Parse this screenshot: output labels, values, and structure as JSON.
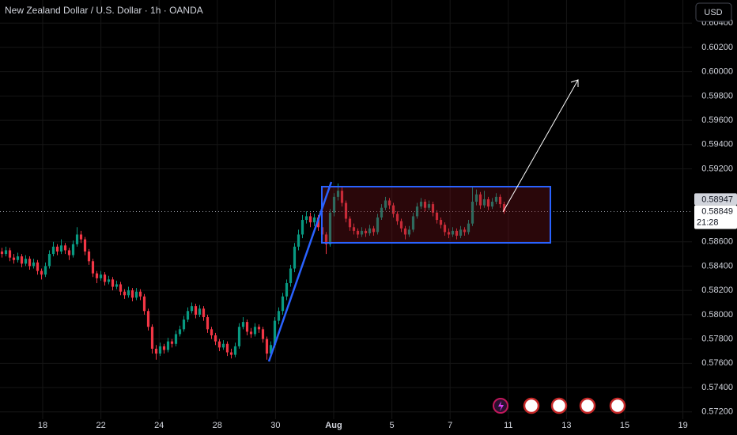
{
  "chart_data": {
    "type": "candlestick",
    "title": "New Zealand Dollar / U.S. Dollar · 1h · OANDA",
    "currency": "USD",
    "up_color": "#089981",
    "down_color": "#f23645",
    "ylim": [
      0.5714,
      0.6059
    ],
    "yticks": [
      {
        "value": 0.604,
        "label": "0.60400"
      },
      {
        "value": 0.602,
        "label": "0.60200"
      },
      {
        "value": 0.6,
        "label": "0.60000"
      },
      {
        "value": 0.598,
        "label": "0.59800"
      },
      {
        "value": 0.596,
        "label": "0.59600"
      },
      {
        "value": 0.594,
        "label": "0.59400"
      },
      {
        "value": 0.592,
        "label": "0.59200"
      },
      {
        "value": 0.586,
        "label": "0.58600"
      },
      {
        "value": 0.584,
        "label": "0.58400"
      },
      {
        "value": 0.582,
        "label": "0.58200"
      },
      {
        "value": 0.58,
        "label": "0.58000"
      },
      {
        "value": 0.578,
        "label": "0.57800"
      },
      {
        "value": 0.576,
        "label": "0.57600"
      },
      {
        "value": 0.574,
        "label": "0.57400"
      },
      {
        "value": 0.572,
        "label": "0.57200"
      }
    ],
    "x_labels": [
      "18",
      "22",
      "24",
      "28",
      "30",
      "Aug",
      "5",
      "7",
      "11",
      "13",
      "15",
      "19"
    ],
    "price_marker": 0.58947,
    "last_price": 0.58849,
    "countdown": "21:28",
    "candles": [
      [
        0.5852,
        0.5855,
        0.5847,
        0.585
      ],
      [
        0.585,
        0.5856,
        0.5848,
        0.5853
      ],
      [
        0.5853,
        0.5855,
        0.5844,
        0.5847
      ],
      [
        0.5847,
        0.585,
        0.5842,
        0.5845
      ],
      [
        0.5845,
        0.5851,
        0.5843,
        0.5848
      ],
      [
        0.5848,
        0.585,
        0.5839,
        0.5842
      ],
      [
        0.5842,
        0.5849,
        0.584,
        0.5846
      ],
      [
        0.5846,
        0.5848,
        0.5837,
        0.584
      ],
      [
        0.584,
        0.5846,
        0.5838,
        0.5843
      ],
      [
        0.5843,
        0.5845,
        0.5833,
        0.5836
      ],
      [
        0.5836,
        0.5838,
        0.5829,
        0.5833
      ],
      [
        0.5833,
        0.5843,
        0.5831,
        0.584
      ],
      [
        0.584,
        0.5853,
        0.5838,
        0.585
      ],
      [
        0.585,
        0.586,
        0.5848,
        0.5856
      ],
      [
        0.5856,
        0.5858,
        0.5849,
        0.5852
      ],
      [
        0.5852,
        0.5862,
        0.585,
        0.5857
      ],
      [
        0.5857,
        0.5859,
        0.585,
        0.5853
      ],
      [
        0.5853,
        0.5855,
        0.5845,
        0.5849
      ],
      [
        0.5849,
        0.5861,
        0.5847,
        0.5858
      ],
      [
        0.5858,
        0.5872,
        0.5856,
        0.5866
      ],
      [
        0.5866,
        0.5869,
        0.5859,
        0.5862
      ],
      [
        0.5862,
        0.5864,
        0.5849,
        0.5852
      ],
      [
        0.5852,
        0.5854,
        0.5841,
        0.5844
      ],
      [
        0.5844,
        0.5846,
        0.5831,
        0.5834
      ],
      [
        0.5834,
        0.5836,
        0.5826,
        0.583
      ],
      [
        0.583,
        0.5836,
        0.5828,
        0.5833
      ],
      [
        0.5833,
        0.5835,
        0.5824,
        0.5827
      ],
      [
        0.5827,
        0.5832,
        0.5825,
        0.5829
      ],
      [
        0.5829,
        0.5831,
        0.582,
        0.5823
      ],
      [
        0.5823,
        0.5828,
        0.5821,
        0.5825
      ],
      [
        0.5825,
        0.5827,
        0.5816,
        0.5819
      ],
      [
        0.5819,
        0.5821,
        0.5813,
        0.5816
      ],
      [
        0.5816,
        0.5823,
        0.5814,
        0.582
      ],
      [
        0.582,
        0.5822,
        0.5811,
        0.5814
      ],
      [
        0.5814,
        0.5822,
        0.5812,
        0.5819
      ],
      [
        0.5819,
        0.5821,
        0.5812,
        0.5815
      ],
      [
        0.5815,
        0.5817,
        0.58,
        0.5803
      ],
      [
        0.5803,
        0.5805,
        0.5787,
        0.579
      ],
      [
        0.579,
        0.5792,
        0.5768,
        0.5772
      ],
      [
        0.5772,
        0.5775,
        0.5763,
        0.5768
      ],
      [
        0.5768,
        0.5777,
        0.5766,
        0.5774
      ],
      [
        0.5774,
        0.5776,
        0.5768,
        0.5771
      ],
      [
        0.5771,
        0.5781,
        0.5769,
        0.5778
      ],
      [
        0.5778,
        0.578,
        0.5773,
        0.5776
      ],
      [
        0.5776,
        0.5787,
        0.5774,
        0.5784
      ],
      [
        0.5784,
        0.5791,
        0.5782,
        0.5788
      ],
      [
        0.5788,
        0.5799,
        0.5786,
        0.5796
      ],
      [
        0.5796,
        0.5806,
        0.5794,
        0.5803
      ],
      [
        0.5803,
        0.581,
        0.5801,
        0.5807
      ],
      [
        0.5807,
        0.5809,
        0.5797,
        0.58
      ],
      [
        0.58,
        0.5808,
        0.5798,
        0.5805
      ],
      [
        0.5805,
        0.5807,
        0.5795,
        0.5798
      ],
      [
        0.5798,
        0.58,
        0.5785,
        0.5788
      ],
      [
        0.5788,
        0.579,
        0.578,
        0.5783
      ],
      [
        0.5783,
        0.5785,
        0.5775,
        0.5778
      ],
      [
        0.5778,
        0.578,
        0.577,
        0.5773
      ],
      [
        0.5773,
        0.5779,
        0.5771,
        0.5776
      ],
      [
        0.5776,
        0.5778,
        0.5766,
        0.5769
      ],
      [
        0.5769,
        0.5772,
        0.5764,
        0.5767
      ],
      [
        0.5767,
        0.5777,
        0.5765,
        0.5774
      ],
      [
        0.5774,
        0.5793,
        0.5772,
        0.579
      ],
      [
        0.579,
        0.5798,
        0.5788,
        0.5794
      ],
      [
        0.5794,
        0.5796,
        0.5783,
        0.5786
      ],
      [
        0.5786,
        0.5789,
        0.5781,
        0.5784
      ],
      [
        0.5784,
        0.5793,
        0.5782,
        0.579
      ],
      [
        0.579,
        0.5792,
        0.5785,
        0.5788
      ],
      [
        0.5788,
        0.579,
        0.5777,
        0.578
      ],
      [
        0.578,
        0.5782,
        0.5763,
        0.5768
      ],
      [
        0.5768,
        0.5778,
        0.5765,
        0.5775
      ],
      [
        0.5775,
        0.5798,
        0.5773,
        0.5795
      ],
      [
        0.5795,
        0.5806,
        0.5792,
        0.5803
      ],
      [
        0.5803,
        0.5818,
        0.58,
        0.5815
      ],
      [
        0.5815,
        0.5829,
        0.5812,
        0.5826
      ],
      [
        0.5826,
        0.5841,
        0.5823,
        0.5838
      ],
      [
        0.5838,
        0.5859,
        0.5835,
        0.5856
      ],
      [
        0.5856,
        0.587,
        0.5853,
        0.5866
      ],
      [
        0.5866,
        0.5882,
        0.5863,
        0.5878
      ],
      [
        0.5878,
        0.5885,
        0.5875,
        0.5881
      ],
      [
        0.5881,
        0.5884,
        0.5872,
        0.5876
      ],
      [
        0.5876,
        0.5883,
        0.5873,
        0.588
      ],
      [
        0.588,
        0.5882,
        0.5869,
        0.5872
      ],
      [
        0.5872,
        0.5875,
        0.5862,
        0.5866
      ],
      [
        0.5866,
        0.5868,
        0.585,
        0.5858
      ],
      [
        0.5858,
        0.5887,
        0.5856,
        0.5884
      ],
      [
        0.5884,
        0.59,
        0.5881,
        0.5897
      ],
      [
        0.5897,
        0.5908,
        0.5894,
        0.5902
      ],
      [
        0.5902,
        0.5905,
        0.5889,
        0.5892
      ],
      [
        0.5892,
        0.5894,
        0.5876,
        0.5879
      ],
      [
        0.5879,
        0.5881,
        0.5869,
        0.5872
      ],
      [
        0.5872,
        0.5875,
        0.5866,
        0.5869
      ],
      [
        0.5869,
        0.5871,
        0.5863,
        0.5866
      ],
      [
        0.5866,
        0.5872,
        0.5864,
        0.5869
      ],
      [
        0.5869,
        0.5871,
        0.5864,
        0.5867
      ],
      [
        0.5867,
        0.5874,
        0.5865,
        0.5871
      ],
      [
        0.5871,
        0.5873,
        0.5865,
        0.5868
      ],
      [
        0.5868,
        0.5883,
        0.5866,
        0.588
      ],
      [
        0.588,
        0.5891,
        0.5878,
        0.5888
      ],
      [
        0.5888,
        0.5897,
        0.5886,
        0.5894
      ],
      [
        0.5894,
        0.5896,
        0.5887,
        0.589
      ],
      [
        0.589,
        0.5892,
        0.588,
        0.5883
      ],
      [
        0.5883,
        0.5885,
        0.5874,
        0.5877
      ],
      [
        0.5877,
        0.5879,
        0.5868,
        0.5871
      ],
      [
        0.5871,
        0.5873,
        0.5862,
        0.5866
      ],
      [
        0.5866,
        0.5873,
        0.5864,
        0.587
      ],
      [
        0.587,
        0.5884,
        0.5868,
        0.5881
      ],
      [
        0.5881,
        0.5892,
        0.5879,
        0.5889
      ],
      [
        0.5889,
        0.5896,
        0.5887,
        0.5893
      ],
      [
        0.5893,
        0.5895,
        0.5885,
        0.5888
      ],
      [
        0.5888,
        0.5894,
        0.5886,
        0.5891
      ],
      [
        0.5891,
        0.5893,
        0.5881,
        0.5884
      ],
      [
        0.5884,
        0.5886,
        0.5875,
        0.5878
      ],
      [
        0.5878,
        0.588,
        0.5871,
        0.5874
      ],
      [
        0.5874,
        0.5876,
        0.5865,
        0.5868
      ],
      [
        0.5868,
        0.5871,
        0.5863,
        0.5866
      ],
      [
        0.5866,
        0.5872,
        0.5864,
        0.5869
      ],
      [
        0.5869,
        0.5871,
        0.5862,
        0.5865
      ],
      [
        0.5865,
        0.5873,
        0.5863,
        0.587
      ],
      [
        0.587,
        0.5872,
        0.5865,
        0.5868
      ],
      [
        0.5868,
        0.5878,
        0.5866,
        0.5875
      ],
      [
        0.5875,
        0.5906,
        0.5873,
        0.5893
      ],
      [
        0.5893,
        0.5903,
        0.589,
        0.5899
      ],
      [
        0.5899,
        0.5901,
        0.5887,
        0.589
      ],
      [
        0.589,
        0.5902,
        0.5888,
        0.5895
      ],
      [
        0.5895,
        0.5897,
        0.5886,
        0.5889
      ],
      [
        0.5889,
        0.5896,
        0.5887,
        0.5893
      ],
      [
        0.5893,
        0.59,
        0.5891,
        0.5897
      ],
      [
        0.5897,
        0.5899,
        0.5888,
        0.5891
      ],
      [
        0.5891,
        0.5893,
        0.5883,
        0.58849
      ]
    ]
  }
}
